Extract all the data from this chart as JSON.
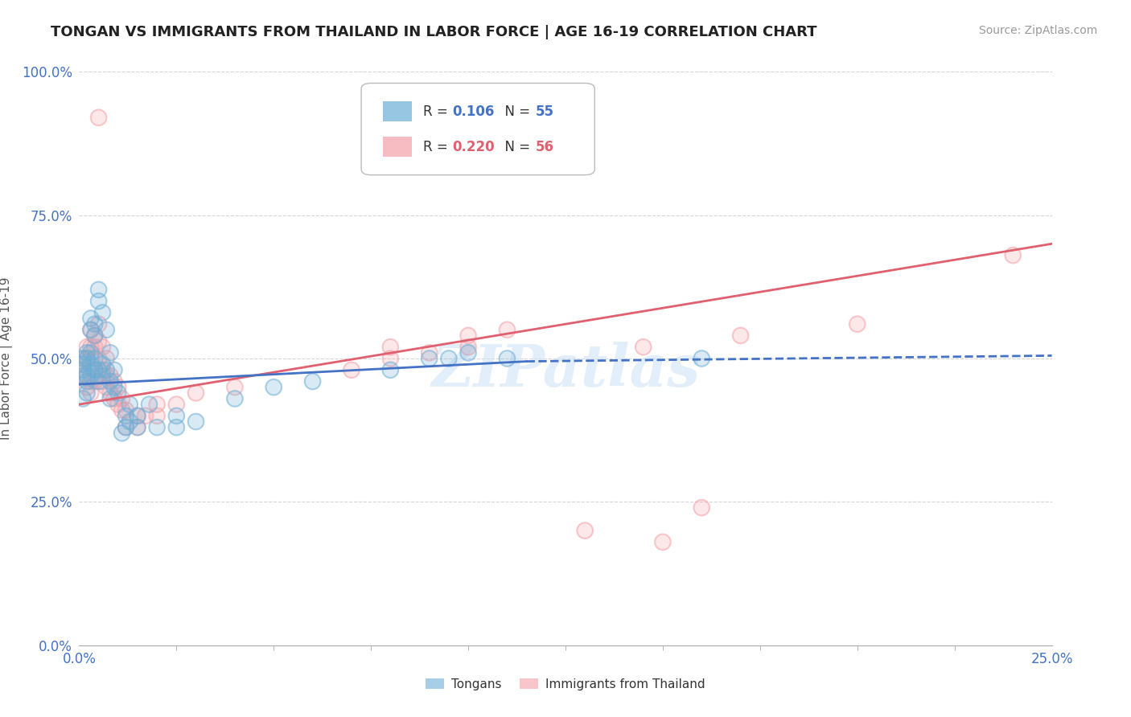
{
  "title": "TONGAN VS IMMIGRANTS FROM THAILAND IN LABOR FORCE | AGE 16-19 CORRELATION CHART",
  "source": "Source: ZipAtlas.com",
  "ylabel": "In Labor Force | Age 16-19",
  "xlim": [
    0.0,
    0.25
  ],
  "ylim": [
    0.0,
    1.0
  ],
  "ytick_labels": [
    "0.0%",
    "25.0%",
    "50.0%",
    "75.0%",
    "100.0%"
  ],
  "ytick_vals": [
    0.0,
    0.25,
    0.5,
    0.75,
    1.0
  ],
  "xtick_vals": [
    0.0,
    0.25
  ],
  "tongan_color": "#6baed6",
  "thailand_color": "#f4a0a8",
  "watermark": "ZIPatlas",
  "background_color": "#ffffff",
  "grid_color": "#cccccc",
  "tongan_scatter": [
    [
      0.001,
      0.47
    ],
    [
      0.001,
      0.48
    ],
    [
      0.001,
      0.49
    ],
    [
      0.001,
      0.5
    ],
    [
      0.001,
      0.43
    ],
    [
      0.002,
      0.44
    ],
    [
      0.002,
      0.46
    ],
    [
      0.002,
      0.47
    ],
    [
      0.002,
      0.5
    ],
    [
      0.002,
      0.51
    ],
    [
      0.003,
      0.47
    ],
    [
      0.003,
      0.49
    ],
    [
      0.003,
      0.51
    ],
    [
      0.003,
      0.55
    ],
    [
      0.003,
      0.57
    ],
    [
      0.004,
      0.48
    ],
    [
      0.004,
      0.5
    ],
    [
      0.004,
      0.54
    ],
    [
      0.004,
      0.56
    ],
    [
      0.005,
      0.46
    ],
    [
      0.005,
      0.48
    ],
    [
      0.005,
      0.6
    ],
    [
      0.005,
      0.62
    ],
    [
      0.006,
      0.47
    ],
    [
      0.006,
      0.49
    ],
    [
      0.006,
      0.58
    ],
    [
      0.007,
      0.48
    ],
    [
      0.007,
      0.55
    ],
    [
      0.008,
      0.43
    ],
    [
      0.008,
      0.46
    ],
    [
      0.008,
      0.51
    ],
    [
      0.009,
      0.45
    ],
    [
      0.009,
      0.48
    ],
    [
      0.01,
      0.44
    ],
    [
      0.011,
      0.37
    ],
    [
      0.012,
      0.38
    ],
    [
      0.012,
      0.4
    ],
    [
      0.013,
      0.39
    ],
    [
      0.013,
      0.42
    ],
    [
      0.015,
      0.38
    ],
    [
      0.015,
      0.4
    ],
    [
      0.018,
      0.42
    ],
    [
      0.02,
      0.38
    ],
    [
      0.025,
      0.38
    ],
    [
      0.025,
      0.4
    ],
    [
      0.03,
      0.39
    ],
    [
      0.04,
      0.43
    ],
    [
      0.05,
      0.45
    ],
    [
      0.06,
      0.46
    ],
    [
      0.08,
      0.48
    ],
    [
      0.09,
      0.5
    ],
    [
      0.095,
      0.5
    ],
    [
      0.1,
      0.51
    ],
    [
      0.11,
      0.5
    ],
    [
      0.16,
      0.5
    ]
  ],
  "thailand_scatter": [
    [
      0.001,
      0.47
    ],
    [
      0.001,
      0.49
    ],
    [
      0.001,
      0.5
    ],
    [
      0.002,
      0.45
    ],
    [
      0.002,
      0.47
    ],
    [
      0.002,
      0.5
    ],
    [
      0.002,
      0.52
    ],
    [
      0.003,
      0.44
    ],
    [
      0.003,
      0.46
    ],
    [
      0.003,
      0.5
    ],
    [
      0.003,
      0.52
    ],
    [
      0.003,
      0.55
    ],
    [
      0.004,
      0.46
    ],
    [
      0.004,
      0.48
    ],
    [
      0.004,
      0.52
    ],
    [
      0.004,
      0.54
    ],
    [
      0.005,
      0.47
    ],
    [
      0.005,
      0.5
    ],
    [
      0.005,
      0.53
    ],
    [
      0.005,
      0.56
    ],
    [
      0.006,
      0.46
    ],
    [
      0.006,
      0.48
    ],
    [
      0.006,
      0.52
    ],
    [
      0.007,
      0.45
    ],
    [
      0.007,
      0.47
    ],
    [
      0.007,
      0.5
    ],
    [
      0.008,
      0.44
    ],
    [
      0.008,
      0.47
    ],
    [
      0.009,
      0.43
    ],
    [
      0.009,
      0.46
    ],
    [
      0.01,
      0.42
    ],
    [
      0.01,
      0.45
    ],
    [
      0.011,
      0.41
    ],
    [
      0.011,
      0.43
    ],
    [
      0.012,
      0.38
    ],
    [
      0.012,
      0.41
    ],
    [
      0.015,
      0.38
    ],
    [
      0.015,
      0.4
    ],
    [
      0.017,
      0.4
    ],
    [
      0.02,
      0.4
    ],
    [
      0.02,
      0.42
    ],
    [
      0.025,
      0.42
    ],
    [
      0.03,
      0.44
    ],
    [
      0.04,
      0.45
    ],
    [
      0.005,
      0.92
    ],
    [
      0.07,
      0.48
    ],
    [
      0.08,
      0.5
    ],
    [
      0.08,
      0.52
    ],
    [
      0.09,
      0.51
    ],
    [
      0.1,
      0.52
    ],
    [
      0.1,
      0.54
    ],
    [
      0.11,
      0.55
    ],
    [
      0.13,
      0.2
    ],
    [
      0.145,
      0.52
    ],
    [
      0.15,
      0.18
    ],
    [
      0.16,
      0.24
    ],
    [
      0.17,
      0.54
    ],
    [
      0.2,
      0.56
    ],
    [
      0.24,
      0.68
    ]
  ],
  "tongan_line_solid": {
    "x": [
      0.0,
      0.115
    ],
    "y": [
      0.455,
      0.495
    ]
  },
  "tongan_line_dashed": {
    "x": [
      0.115,
      0.25
    ],
    "y": [
      0.495,
      0.505
    ]
  },
  "thailand_line": {
    "x": [
      0.0,
      0.25
    ],
    "y": [
      0.42,
      0.7
    ]
  },
  "title_fontsize": 13,
  "axis_label_fontsize": 11,
  "tick_fontsize": 12,
  "source_fontsize": 10
}
